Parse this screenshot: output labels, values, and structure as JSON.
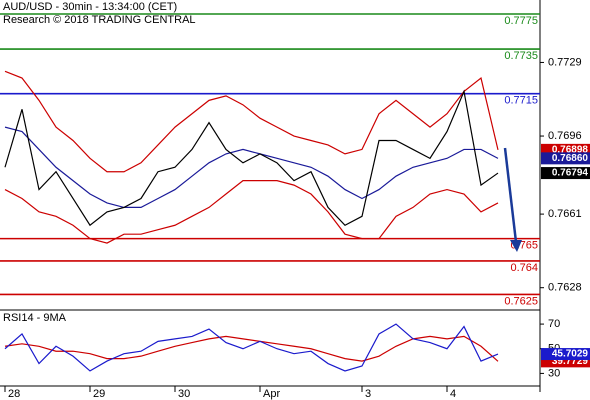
{
  "chart_data": [
    {
      "type": "line",
      "title": "AUD/USD - 30min - 13:34:00 (CET)",
      "subtitle": "Research © 2018 TRADING CENTRAL",
      "ylim": [
        0.7618,
        0.7757
      ],
      "yticks": [
        0.7729,
        0.7696,
        0.7661,
        0.7628
      ],
      "levels": [
        {
          "value": 0.7775,
          "color": "#1a8a1a"
        },
        {
          "value": 0.7735,
          "color": "#1a8a1a"
        },
        {
          "value": 0.7715,
          "color": "#1a1acc"
        },
        {
          "value": 0.765,
          "color": "#cc0000"
        },
        {
          "value": 0.764,
          "color": "#cc0000"
        },
        {
          "value": 0.7625,
          "color": "#cc0000"
        }
      ],
      "series": [
        {
          "color": "#cc0000",
          "last_label": "0.76898",
          "values": [
            0.7725,
            0.7722,
            0.7712,
            0.77,
            0.7694,
            0.7686,
            0.768,
            0.768,
            0.7684,
            0.7692,
            0.77,
            0.7706,
            0.7712,
            0.7714,
            0.771,
            0.7704,
            0.77,
            0.7696,
            0.7694,
            0.7692,
            0.7688,
            0.769,
            0.7706,
            0.7712,
            0.7706,
            0.77,
            0.7706,
            0.7716,
            0.7722,
            0.76898
          ]
        },
        {
          "color": "#cc0000",
          "values": [
            0.7672,
            0.7668,
            0.7662,
            0.766,
            0.7656,
            0.765,
            0.7648,
            0.7652,
            0.7652,
            0.7654,
            0.7656,
            0.766,
            0.7664,
            0.767,
            0.7676,
            0.7676,
            0.7676,
            0.7674,
            0.767,
            0.7662,
            0.7652,
            0.765,
            0.765,
            0.766,
            0.7664,
            0.767,
            0.7672,
            0.767,
            0.7662,
            0.7666
          ]
        },
        {
          "color": "#1a1a99",
          "last_label": "0.76860",
          "values": [
            0.77,
            0.7698,
            0.769,
            0.7682,
            0.7676,
            0.767,
            0.7666,
            0.7664,
            0.7664,
            0.7668,
            0.7672,
            0.7678,
            0.7684,
            0.7688,
            0.769,
            0.7688,
            0.7686,
            0.7684,
            0.7682,
            0.7678,
            0.7672,
            0.7668,
            0.7672,
            0.7678,
            0.7682,
            0.7684,
            0.7686,
            0.769,
            0.769,
            0.7686
          ]
        },
        {
          "color": "#000000",
          "last_label": "0.76794",
          "values": [
            0.7682,
            0.7708,
            0.7672,
            0.768,
            0.7668,
            0.7656,
            0.7662,
            0.7664,
            0.7668,
            0.768,
            0.7682,
            0.769,
            0.7702,
            0.769,
            0.7684,
            0.7688,
            0.7684,
            0.7676,
            0.768,
            0.7664,
            0.7656,
            0.766,
            0.7694,
            0.7694,
            0.769,
            0.7686,
            0.7698,
            0.7716,
            0.7674,
            0.76794
          ]
        }
      ]
    },
    {
      "type": "line",
      "title": "RSI14 - 9MA",
      "ylim": [
        20.6,
        79.8
      ],
      "yticks": [
        30,
        50,
        70
      ],
      "categories": [
        "28",
        null,
        null,
        null,
        null,
        "29",
        null,
        null,
        null,
        null,
        "30",
        null,
        null,
        null,
        null,
        "Apr",
        null,
        null,
        null,
        null,
        null,
        "3",
        null,
        null,
        null,
        null,
        "4",
        null,
        null,
        null
      ],
      "series": [
        {
          "color": "#cc0000",
          "values": [
            52,
            54,
            52,
            48,
            48,
            46,
            42,
            42,
            44,
            48,
            52,
            55,
            58,
            60,
            58,
            56,
            54,
            52,
            50,
            46,
            42,
            40,
            44,
            52,
            58,
            60,
            58,
            60,
            52,
            39.7729
          ]
        },
        {
          "color": "#1a1acc",
          "values": [
            50,
            62,
            38,
            52,
            44,
            32,
            40,
            46,
            48,
            56,
            58,
            60,
            66,
            55,
            50,
            56,
            50,
            46,
            48,
            38,
            32,
            36,
            62,
            70,
            58,
            55,
            50,
            68,
            40,
            45.7029
          ]
        }
      ]
    }
  ]
}
